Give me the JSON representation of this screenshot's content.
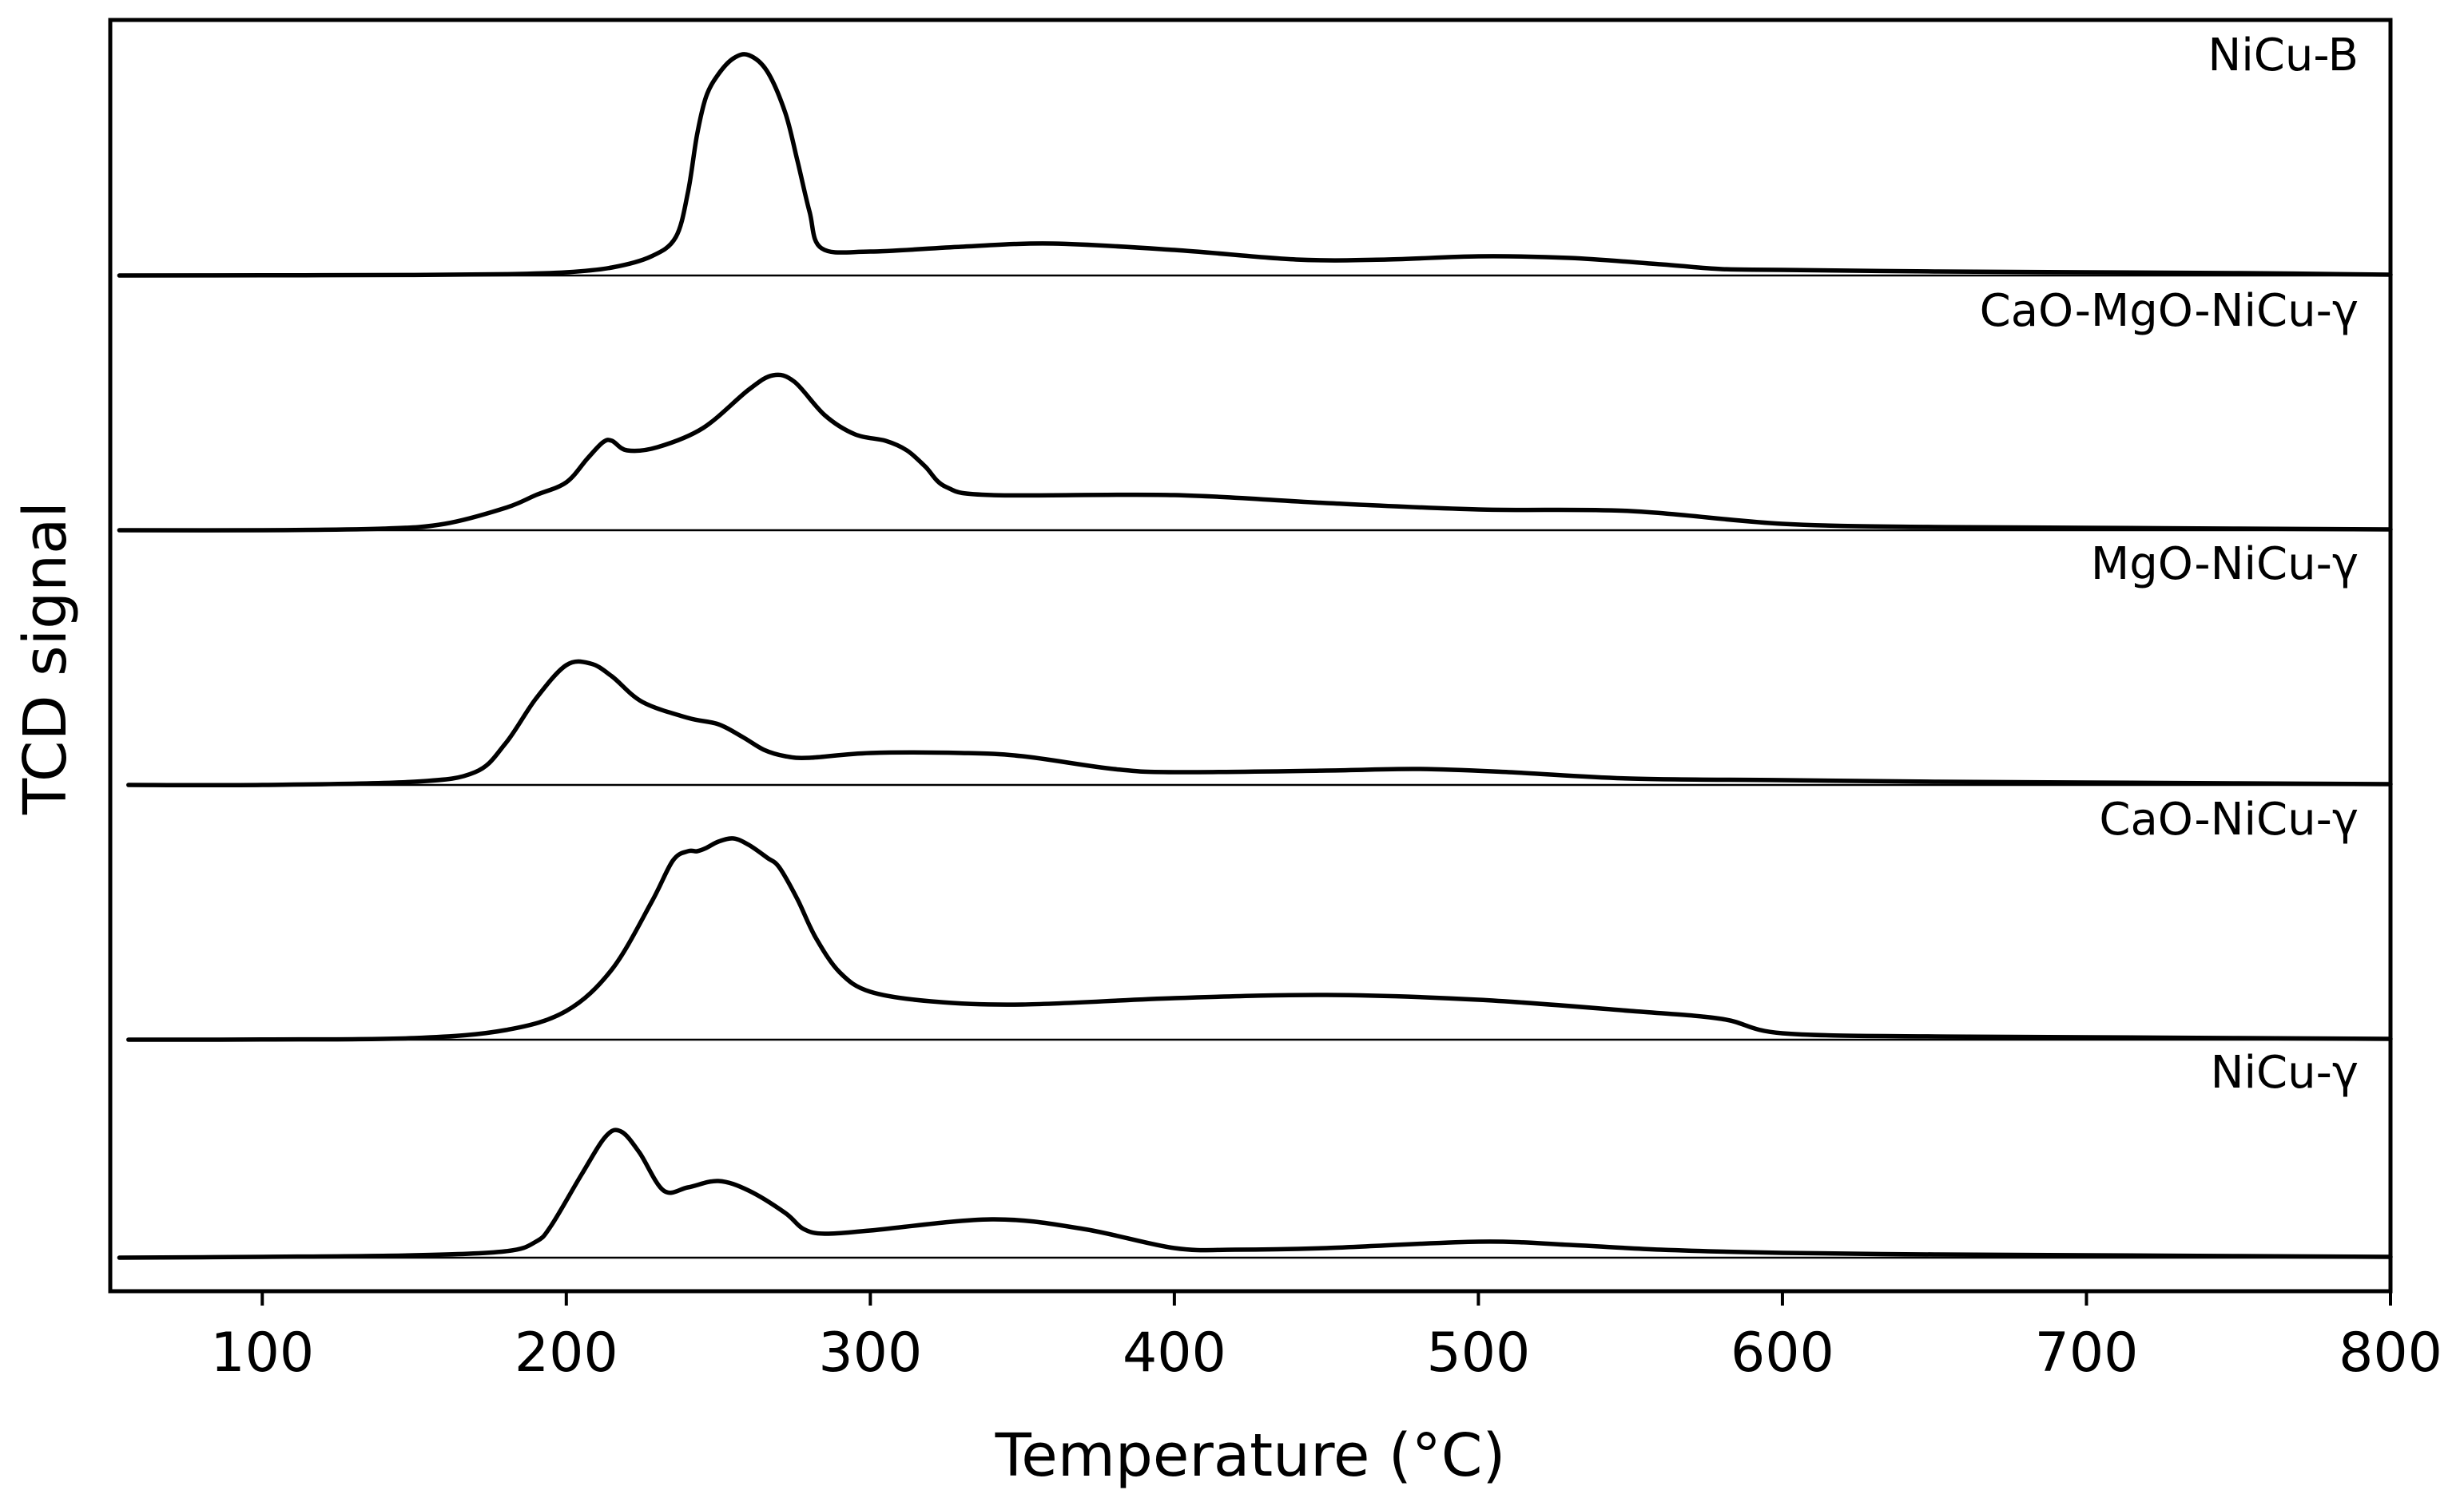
{
  "chart_data": {
    "type": "line",
    "title": "",
    "xlabel": "Temperature (°C)",
    "ylabel": "TCD signal",
    "xlim": [
      50,
      800
    ],
    "xticks": [
      100,
      200,
      300,
      400,
      500,
      600,
      700,
      800
    ],
    "stacked_offset": true,
    "y_units": "arbitrary (relative height, baseline = 0)",
    "series": [
      {
        "name": "NiCu-B",
        "x": [
          53,
          100,
          150,
          180,
          200,
          215,
          228,
          236,
          240,
          243,
          246,
          250,
          255,
          260,
          266,
          272,
          276,
          280,
          284,
          300,
          330,
          360,
          400,
          440,
          470,
          500,
          530,
          560,
          580,
          600,
          650,
          700,
          750,
          800
        ],
        "y": [
          0,
          0.1,
          0.3,
          0.8,
          2,
          5,
          12,
          24,
          52,
          88,
          112,
          126,
          136,
          138,
          128,
          102,
          72,
          40,
          17,
          15,
          18,
          20,
          16,
          10,
          10,
          12,
          11,
          7,
          4,
          3.5,
          2.5,
          2,
          1.5,
          0.5
        ]
      },
      {
        "name": "CaO-MgO-NiCu-γ",
        "x": [
          53,
          100,
          140,
          160,
          180,
          190,
          200,
          207,
          212,
          215,
          220,
          230,
          245,
          260,
          268,
          275,
          285,
          295,
          305,
          312,
          318,
          325,
          340,
          400,
          450,
          500,
          550,
          600,
          650,
          700,
          750,
          800
        ],
        "y": [
          0,
          0,
          1,
          4,
          14,
          22,
          30,
          45,
          55,
          56,
          50,
          52,
          64,
          88,
          97,
          93,
          72,
          60,
          56,
          50,
          40,
          27,
          22,
          22,
          17,
          13,
          12,
          4,
          2,
          1.5,
          1,
          0.5
        ]
      },
      {
        "name": "MgO-NiCu-γ",
        "x": [
          56,
          100,
          150,
          170,
          180,
          190,
          200,
          208,
          215,
          225,
          240,
          250,
          258,
          265,
          272,
          280,
          300,
          330,
          350,
          380,
          400,
          450,
          480,
          510,
          550,
          600,
          650,
          700,
          750,
          800
        ],
        "y": [
          0,
          0,
          2,
          8,
          26,
          54,
          75,
          76,
          68,
          52,
          42,
          38,
          30,
          22,
          18,
          17,
          20,
          20,
          18,
          10,
          8,
          9,
          10,
          8,
          4,
          3,
          2,
          1.5,
          1,
          0.5
        ]
      },
      {
        "name": "CaO-NiCu-γ",
        "x": [
          56,
          100,
          150,
          180,
          200,
          215,
          228,
          235,
          240,
          243,
          246,
          250,
          255,
          260,
          266,
          270,
          276,
          282,
          290,
          300,
          320,
          350,
          400,
          450,
          500,
          550,
          580,
          600,
          650,
          700,
          750,
          800
        ],
        "y": [
          0,
          0.1,
          1,
          6,
          18,
          44,
          86,
          112,
          118,
          118,
          120,
          124,
          126,
          122,
          114,
          108,
          88,
          64,
          42,
          30,
          24,
          22,
          26,
          28,
          25,
          18,
          13,
          4,
          2,
          1.5,
          1,
          0.5
        ]
      },
      {
        "name": "NiCu-γ",
        "x": [
          53,
          100,
          150,
          180,
          190,
          195,
          205,
          213,
          218,
          224,
          232,
          240,
          250,
          260,
          272,
          278,
          285,
          300,
          340,
          370,
          400,
          420,
          450,
          500,
          530,
          560,
          600,
          650,
          700,
          750,
          800
        ],
        "y": [
          0,
          0.5,
          1.5,
          4,
          10,
          20,
          52,
          76,
          79,
          66,
          42,
          44,
          48,
          42,
          28,
          18,
          15,
          17,
          24,
          18,
          6,
          5,
          6,
          10,
          8,
          5,
          3,
          2,
          1.5,
          1,
          0.5
        ]
      }
    ]
  }
}
